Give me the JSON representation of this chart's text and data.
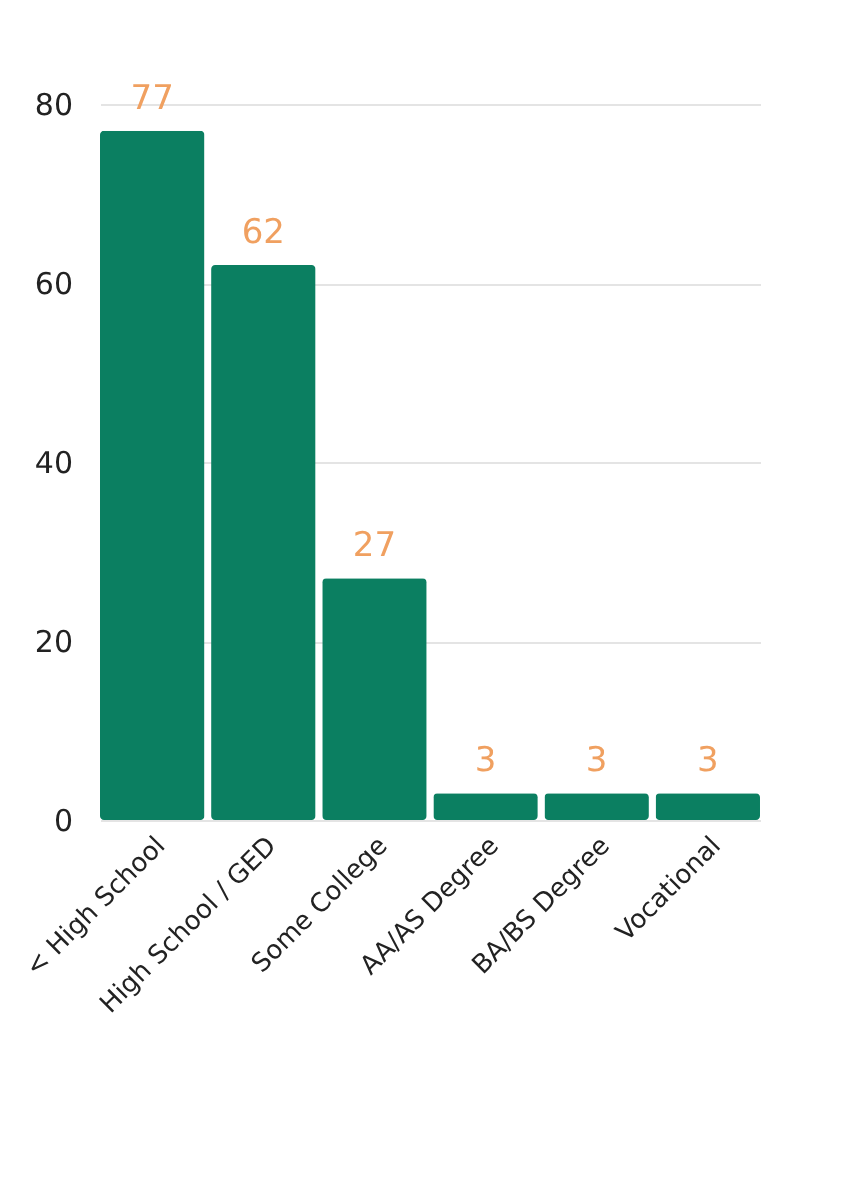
{
  "chart_data": {
    "type": "bar",
    "categories": [
      "< High School",
      "High School / GED",
      "Some College",
      "AA/AS Degree",
      "BA/BS Degree",
      "Vocational"
    ],
    "values": [
      77,
      62,
      27,
      3,
      3,
      3
    ],
    "color": "#0b7f61",
    "ylim": [
      0,
      80
    ],
    "yticks": [
      0,
      20,
      40,
      60,
      80
    ],
    "grid": "y",
    "data_labels": true
  }
}
